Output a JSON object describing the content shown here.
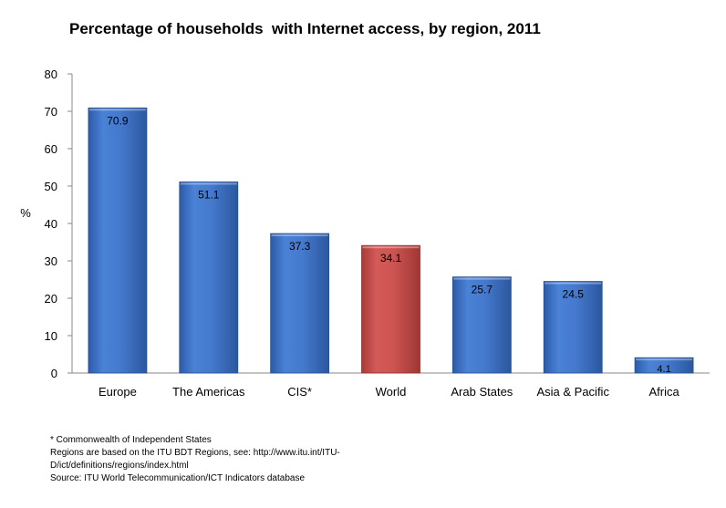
{
  "chart_data": {
    "type": "bar",
    "title": "Percentage of households  with Internet access, by region, 2011",
    "ylabel": "%",
    "xlabel": "",
    "ylim": [
      0,
      80
    ],
    "yticks": [
      0,
      10,
      20,
      30,
      40,
      50,
      60,
      70,
      80
    ],
    "grid": false,
    "categories": [
      "Europe",
      "The Americas",
      "CIS*",
      "World",
      "Arab States",
      "Asia & Pacific",
      "Africa"
    ],
    "values": [
      70.9,
      51.1,
      37.3,
      34.1,
      25.7,
      24.5,
      4.1
    ],
    "data_labels": [
      "70.9",
      "51.1",
      "37.3",
      "34.1",
      "25.7",
      "24.5",
      "4.1"
    ],
    "bar_colors": [
      "#3f74c9",
      "#3f74c9",
      "#3f74c9",
      "#c9504e",
      "#3f74c9",
      "#3f74c9",
      "#3f74c9"
    ]
  },
  "footnotes": [
    "* Commonwealth of Independent States",
    "Regions are based on the ITU BDT Regions, see: http://www.itu.int/ITU-",
    "D/ict/definitions/regions/index.html",
    "Source: ITU World Telecommunication/ICT Indicators database"
  ]
}
